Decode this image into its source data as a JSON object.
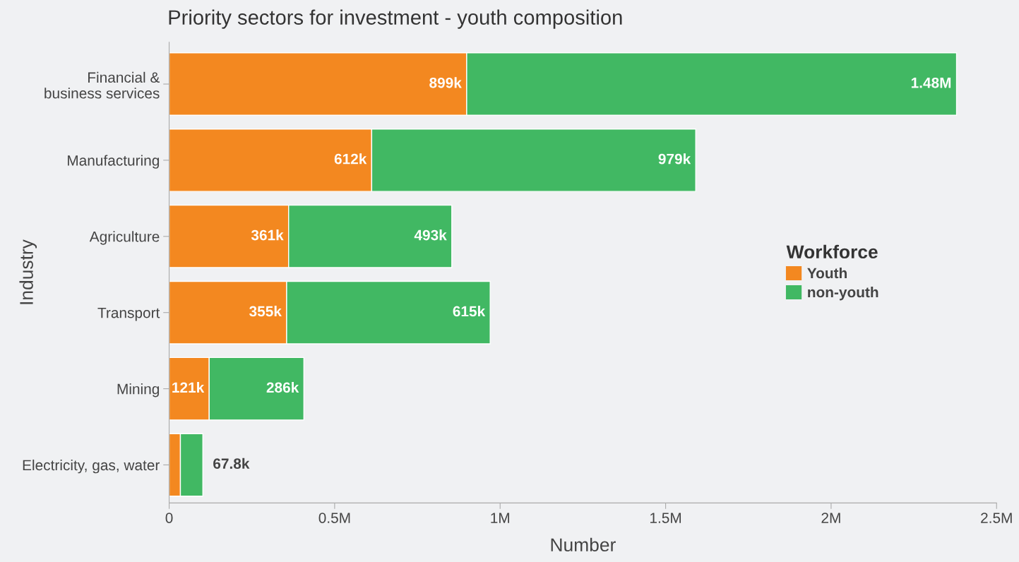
{
  "chart_data": {
    "type": "bar",
    "orientation": "horizontal",
    "stacked": true,
    "title": "Priority sectors for investment - youth composition",
    "xlabel": "Number",
    "ylabel": "Industry",
    "legend_title": "Workforce",
    "categories": [
      "Financial &\nbusiness services",
      "Manufacturing",
      "Agriculture",
      "Transport",
      "Mining",
      "Electricity, gas, water"
    ],
    "series": [
      {
        "name": "Youth",
        "color": "#f38820",
        "values": [
          899000,
          612000,
          361000,
          355000,
          121000,
          34000
        ],
        "value_labels": [
          "899k",
          "612k",
          "361k",
          "355k",
          "121k",
          null
        ]
      },
      {
        "name": "non-youth",
        "color": "#41b863",
        "values": [
          1480000,
          979000,
          493000,
          615000,
          286000,
          67800
        ],
        "value_labels": [
          "1.48M",
          "979k",
          "493k",
          "615k",
          "286k",
          "67.8k"
        ]
      }
    ],
    "xlim": [
      0,
      2500000
    ],
    "xticks": [
      0,
      {
        "value": 500000,
        "label": "0.5M"
      },
      {
        "value": 1000000,
        "label": "1M"
      },
      {
        "value": 1500000,
        "label": "1.5M"
      },
      {
        "value": 2000000,
        "label": "2M"
      },
      {
        "value": 2500000,
        "label": "2.5M"
      }
    ],
    "grid": false,
    "legend": "right"
  }
}
